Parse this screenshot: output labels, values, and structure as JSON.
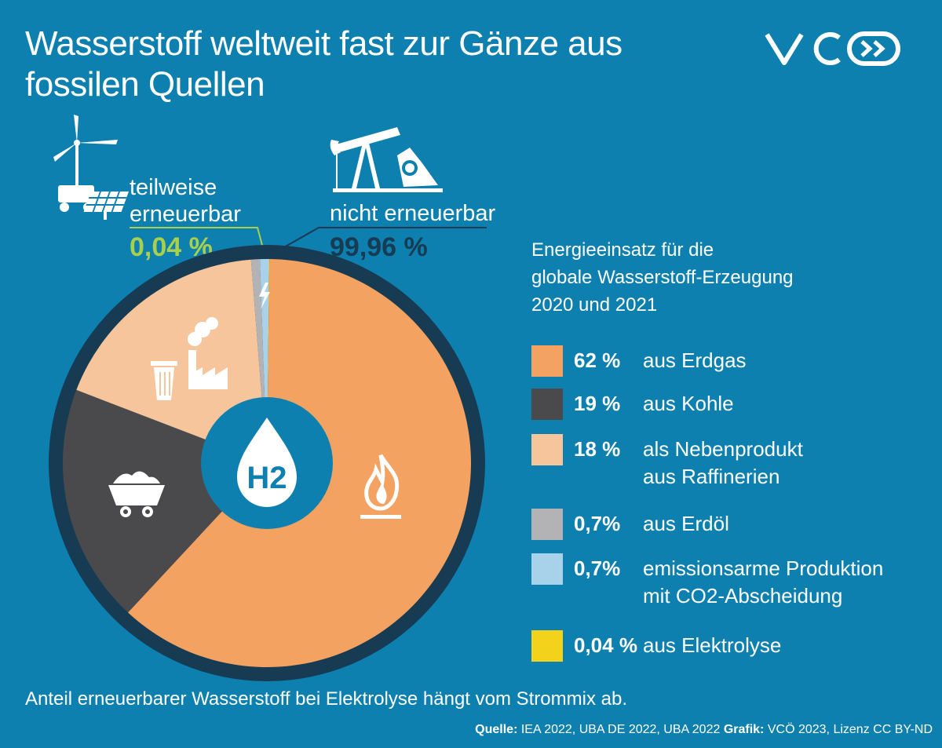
{
  "title_line1": "Wasserstoff weltweit fast zur Gänze aus",
  "title_line2": "fossilen Quellen",
  "logo_text": "VCÖ",
  "partly_renewable": {
    "label_line1": "teilweise",
    "label_line2": "erneuerbar",
    "value": "0,04 %"
  },
  "non_renewable": {
    "label": "nicht erneuerbar",
    "value": "99,96 %"
  },
  "legend_title": [
    "Energieeinsatz für die",
    "globale Wasserstoff-Erzeugung",
    "2020 und 2021"
  ],
  "legend": [
    {
      "pct": "62 %",
      "text": [
        "aus Erdgas"
      ],
      "color": "#f3a262"
    },
    {
      "pct": "19 %",
      "text": [
        "aus Kohle"
      ],
      "color": "#4a4a4c"
    },
    {
      "pct": "18 %",
      "text": [
        "als Nebenprodukt",
        "aus Raffinerien"
      ],
      "color": "#f7c59c"
    },
    {
      "pct": "0,7%",
      "text": [
        "aus Erdöl"
      ],
      "color": "#b3b3b5"
    },
    {
      "pct": "0,7%",
      "text": [
        "emissionsarme Produktion",
        "mit CO2-Abscheidung"
      ],
      "color": "#a8d2ea"
    },
    {
      "pct": "0,04 %",
      "text": [
        "aus Elektrolyse"
      ],
      "color": "#f2d21b"
    }
  ],
  "center_label": "H2",
  "footnote": "Anteil erneuerbarer Wasserstoff bei Elektrolyse hängt vom Strommix ab.",
  "source": {
    "label1": "Quelle:",
    "text1": " IEA 2022, UBA DE 2022, UBA 2022 ",
    "label2": "Grafik:",
    "text2": " VCÖ 2023, Lizenz CC BY-ND"
  },
  "chart_data": {
    "type": "pie",
    "categories": [
      "aus Erdgas",
      "aus Kohle",
      "als Nebenprodukt aus Raffinerien",
      "aus Erdöl",
      "emissionsarme Produktion mit CO2-Abscheidung",
      "aus Elektrolyse"
    ],
    "values": [
      62,
      19,
      18,
      0.7,
      0.7,
      0.04
    ],
    "colors": [
      "#f3a262",
      "#4a4a4c",
      "#f7c59c",
      "#b3b3b5",
      "#a8d2ea",
      "#f2d21b"
    ],
    "legend_placement": "right"
  }
}
